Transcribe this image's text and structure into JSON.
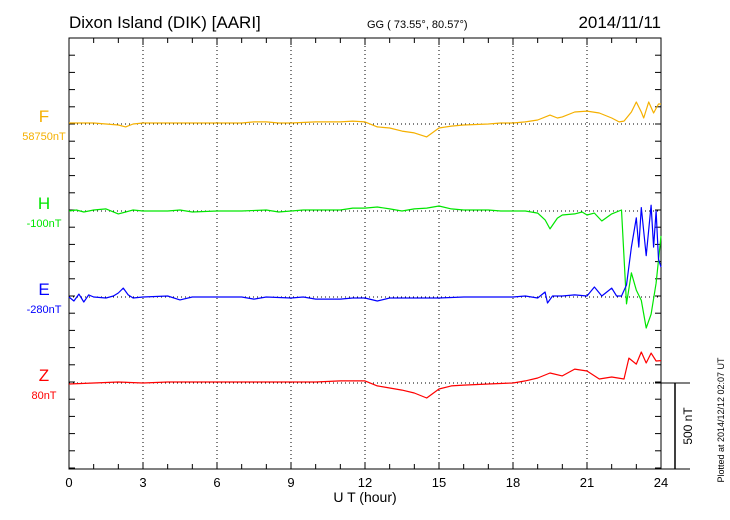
{
  "header": {
    "station": "Dixon Island (DIK)  [AARI]",
    "coords": "GG ( 73.55°,  80.57°)",
    "date": "2014/11/11"
  },
  "footer": {
    "plotted": "Plotted at 2014/12/12 02:07 UT"
  },
  "chart_data": {
    "type": "line",
    "title": "Dixon Island (DIK)  [AARI]",
    "xlabel": "U T (hour)",
    "xlim": [
      0,
      24
    ],
    "xticks": [
      "0",
      "3",
      "6",
      "9",
      "12",
      "15",
      "18",
      "21",
      "24"
    ],
    "xtick_values": [
      0,
      3,
      6,
      9,
      12,
      15,
      18,
      21,
      24
    ],
    "grid": "dotted vertical every 3 h, dotted baseline per series",
    "scale_bar": {
      "label": "500 nT",
      "value_nT": 500
    },
    "minor_tick_nT": 100,
    "series": [
      {
        "name": "F",
        "baseline_label": "58750nT",
        "color": "#f5b000",
        "offset_slot": 0,
        "points": [
          [
            0,
            6
          ],
          [
            0.5,
            6
          ],
          [
            1,
            6
          ],
          [
            1.5,
            0
          ],
          [
            2,
            -6
          ],
          [
            2.3,
            -17
          ],
          [
            2.6,
            0
          ],
          [
            3,
            6
          ],
          [
            4,
            6
          ],
          [
            5,
            6
          ],
          [
            6,
            6
          ],
          [
            7,
            6
          ],
          [
            7.5,
            12
          ],
          [
            8,
            12
          ],
          [
            8.5,
            6
          ],
          [
            9,
            6
          ],
          [
            10,
            12
          ],
          [
            11,
            12
          ],
          [
            11.5,
            17
          ],
          [
            12,
            12
          ],
          [
            12.5,
            -17
          ],
          [
            13,
            -23
          ],
          [
            13.5,
            -41
          ],
          [
            14,
            -52
          ],
          [
            14.5,
            -75
          ],
          [
            15,
            -23
          ],
          [
            15.5,
            -12
          ],
          [
            16,
            -6
          ],
          [
            17,
            0
          ],
          [
            17.5,
            6
          ],
          [
            18,
            6
          ],
          [
            18.5,
            12
          ],
          [
            19,
            23
          ],
          [
            19.5,
            52
          ],
          [
            19.8,
            35
          ],
          [
            20,
            41
          ],
          [
            20.5,
            70
          ],
          [
            21,
            75
          ],
          [
            21.5,
            64
          ],
          [
            22,
            35
          ],
          [
            22.3,
            12
          ],
          [
            22.5,
            17
          ],
          [
            22.8,
            70
          ],
          [
            23,
            128
          ],
          [
            23.2,
            70
          ],
          [
            23.3,
            35
          ],
          [
            23.5,
            128
          ],
          [
            23.7,
            64
          ],
          [
            23.9,
            116
          ],
          [
            24,
            116
          ]
        ]
      },
      {
        "name": "H",
        "baseline_label": "-100nT",
        "color": "#00e600",
        "offset_slot": 1,
        "points": [
          [
            0,
            0
          ],
          [
            0.3,
            6
          ],
          [
            0.6,
            -6
          ],
          [
            1,
            6
          ],
          [
            1.5,
            12
          ],
          [
            2,
            -17
          ],
          [
            2.3,
            -6
          ],
          [
            2.6,
            6
          ],
          [
            3,
            0
          ],
          [
            4,
            0
          ],
          [
            4.5,
            6
          ],
          [
            5,
            -6
          ],
          [
            6,
            0
          ],
          [
            7,
            0
          ],
          [
            8,
            6
          ],
          [
            8.5,
            -6
          ],
          [
            9,
            0
          ],
          [
            9.5,
            6
          ],
          [
            10,
            6
          ],
          [
            11,
            6
          ],
          [
            11.5,
            17
          ],
          [
            12,
            17
          ],
          [
            12.5,
            23
          ],
          [
            13,
            12
          ],
          [
            13.5,
            0
          ],
          [
            14,
            12
          ],
          [
            14.5,
            17
          ],
          [
            15,
            29
          ],
          [
            15.5,
            12
          ],
          [
            16,
            6
          ],
          [
            17,
            6
          ],
          [
            17.5,
            0
          ],
          [
            18,
            0
          ],
          [
            18.5,
            0
          ],
          [
            19,
            -12
          ],
          [
            19.3,
            -52
          ],
          [
            19.5,
            -104
          ],
          [
            19.8,
            -41
          ],
          [
            20,
            -23
          ],
          [
            20.5,
            -17
          ],
          [
            20.8,
            -6
          ],
          [
            21,
            -23
          ],
          [
            21.3,
            -12
          ],
          [
            21.6,
            -58
          ],
          [
            22,
            -17
          ],
          [
            22.4,
            6
          ],
          [
            22.6,
            -540
          ],
          [
            22.8,
            -360
          ],
          [
            23,
            -460
          ],
          [
            23.2,
            -520
          ],
          [
            23.4,
            -680
          ],
          [
            23.6,
            -600
          ],
          [
            23.8,
            -420
          ],
          [
            24,
            -145
          ]
        ]
      },
      {
        "name": "E",
        "baseline_label": "-280nT",
        "color": "#0000ff",
        "offset_slot": 2,
        "points": [
          [
            0,
            0
          ],
          [
            0.2,
            -23
          ],
          [
            0.4,
            17
          ],
          [
            0.6,
            -29
          ],
          [
            0.8,
            12
          ],
          [
            1,
            0
          ],
          [
            1.5,
            -6
          ],
          [
            1.8,
            6
          ],
          [
            2,
            23
          ],
          [
            2.2,
            52
          ],
          [
            2.4,
            12
          ],
          [
            2.6,
            -6
          ],
          [
            3,
            0
          ],
          [
            4,
            6
          ],
          [
            4.5,
            -17
          ],
          [
            5,
            0
          ],
          [
            6,
            0
          ],
          [
            7,
            0
          ],
          [
            7.5,
            -12
          ],
          [
            8,
            0
          ],
          [
            9,
            -6
          ],
          [
            9.5,
            0
          ],
          [
            10,
            -12
          ],
          [
            11,
            -12
          ],
          [
            11.5,
            -6
          ],
          [
            12,
            -6
          ],
          [
            12.5,
            -23
          ],
          [
            13,
            -6
          ],
          [
            14,
            -6
          ],
          [
            15,
            -6
          ],
          [
            16,
            0
          ],
          [
            17,
            0
          ],
          [
            18,
            0
          ],
          [
            18.5,
            6
          ],
          [
            19,
            -6
          ],
          [
            19.3,
            29
          ],
          [
            19.4,
            -35
          ],
          [
            19.6,
            6
          ],
          [
            20,
            6
          ],
          [
            20.5,
            12
          ],
          [
            21,
            6
          ],
          [
            21.3,
            58
          ],
          [
            21.6,
            6
          ],
          [
            22,
            52
          ],
          [
            22.2,
            6
          ],
          [
            22.4,
            6
          ],
          [
            22.6,
            70
          ],
          [
            22.8,
            290
          ],
          [
            23,
            460
          ],
          [
            23.1,
            290
          ],
          [
            23.2,
            520
          ],
          [
            23.4,
            240
          ],
          [
            23.6,
            534
          ],
          [
            23.7,
            290
          ],
          [
            23.8,
            500
          ],
          [
            23.9,
            220
          ],
          [
            24,
            174
          ]
        ]
      },
      {
        "name": "Z",
        "baseline_label": "80nT",
        "color": "#ff0000",
        "offset_slot": 3,
        "points": [
          [
            0,
            -6
          ],
          [
            1,
            0
          ],
          [
            2,
            6
          ],
          [
            3,
            0
          ],
          [
            4,
            6
          ],
          [
            5,
            6
          ],
          [
            6,
            6
          ],
          [
            7,
            6
          ],
          [
            8,
            6
          ],
          [
            9,
            6
          ],
          [
            10,
            6
          ],
          [
            11,
            12
          ],
          [
            12,
            12
          ],
          [
            12.5,
            -17
          ],
          [
            13,
            -29
          ],
          [
            13.5,
            -41
          ],
          [
            14,
            -58
          ],
          [
            14.5,
            -87
          ],
          [
            15,
            -35
          ],
          [
            15.5,
            -17
          ],
          [
            16,
            -12
          ],
          [
            17,
            -6
          ],
          [
            18,
            0
          ],
          [
            18.5,
            12
          ],
          [
            19,
            29
          ],
          [
            19.5,
            58
          ],
          [
            20,
            41
          ],
          [
            20.5,
            81
          ],
          [
            21,
            70
          ],
          [
            21.5,
            23
          ],
          [
            22,
            35
          ],
          [
            22.5,
            23
          ],
          [
            22.7,
            145
          ],
          [
            23,
            110
          ],
          [
            23.2,
            180
          ],
          [
            23.4,
            116
          ],
          [
            23.6,
            174
          ],
          [
            23.8,
            128
          ],
          [
            24,
            130
          ]
        ]
      }
    ]
  }
}
